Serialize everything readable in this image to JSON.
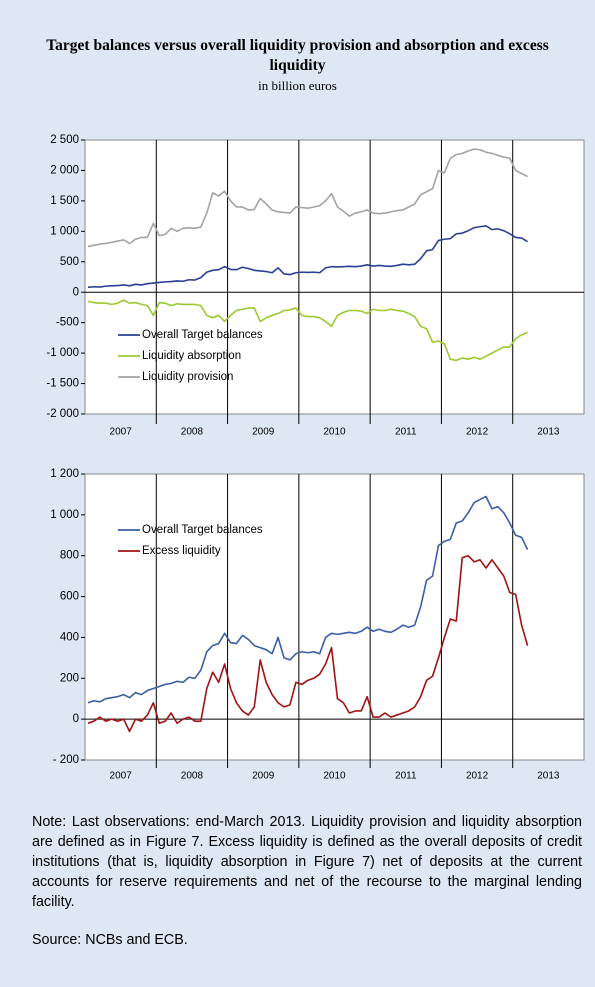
{
  "title": "Target balances versus overall liquidity provision and absorption and excess liquidity",
  "subtitle": "in billion euros",
  "note": "Note: Last observations: end-March 2013. Liquidity provision and liquidity absorption are defined as in Figure 7. Excess liquidity is defined as the overall deposits of credit institutions (that is, liquidity absorption in Figure 7) net of deposits at the current accounts for reserve requirements and net of the recourse to the marginal lending facility.",
  "source": "Source: NCBs and ECB.",
  "chart_data": [
    {
      "type": "line",
      "legend": "upper left",
      "grid": false,
      "x": [
        "2007",
        "2007",
        "2007",
        "2007",
        "2007",
        "2007",
        "2007",
        "2007",
        "2007",
        "2007",
        "2007",
        "2007",
        "2008",
        "2008",
        "2008",
        "2008",
        "2008",
        "2008",
        "2008",
        "2008",
        "2008",
        "2008",
        "2008",
        "2008",
        "2009",
        "2009",
        "2009",
        "2009",
        "2009",
        "2009",
        "2009",
        "2009",
        "2009",
        "2009",
        "2009",
        "2009",
        "2010",
        "2010",
        "2010",
        "2010",
        "2010",
        "2010",
        "2010",
        "2010",
        "2010",
        "2010",
        "2010",
        "2010",
        "2011",
        "2011",
        "2011",
        "2011",
        "2011",
        "2011",
        "2011",
        "2011",
        "2011",
        "2011",
        "2011",
        "2011",
        "2012",
        "2012",
        "2012",
        "2012",
        "2012",
        "2012",
        "2012",
        "2012",
        "2012",
        "2012",
        "2012",
        "2012",
        "2013",
        "2013",
        "2013"
      ],
      "ylim": [
        -2000,
        2500
      ],
      "yticks": [
        {
          "value": -2000,
          "label": "-2 000"
        },
        {
          "value": -1500,
          "label": "-1 500"
        },
        {
          "value": -1000,
          "label": "-1 000"
        },
        -500,
        0,
        500,
        {
          "value": 1000,
          "label": "1 000"
        },
        {
          "value": 1500,
          "label": "1 500"
        },
        {
          "value": 2000,
          "label": "2 000"
        },
        {
          "value": 2500,
          "label": "2 500"
        }
      ],
      "series": [
        {
          "name": "Overall Target balances",
          "color": "#2b3f95",
          "values": [
            80,
            90,
            85,
            100,
            105,
            110,
            120,
            105,
            130,
            120,
            140,
            150,
            160,
            170,
            175,
            185,
            180,
            205,
            200,
            240,
            330,
            360,
            370,
            420,
            375,
            370,
            410,
            390,
            360,
            350,
            340,
            320,
            400,
            300,
            290,
            320,
            330,
            325,
            330,
            320,
            400,
            420,
            415,
            420,
            425,
            420,
            430,
            450,
            430,
            440,
            430,
            425,
            440,
            460,
            450,
            460,
            550,
            680,
            700,
            850,
            870,
            880,
            960,
            970,
            1010,
            1060,
            1075,
            1090,
            1030,
            1040,
            1010,
            960,
            900,
            890,
            830
          ]
        },
        {
          "name": "Liquidity absorption",
          "color": "#9bc92f",
          "values": [
            -150,
            -170,
            -180,
            -180,
            -200,
            -180,
            -130,
            -180,
            -170,
            -200,
            -220,
            -380,
            -170,
            -180,
            -220,
            -190,
            -200,
            -200,
            -200,
            -220,
            -380,
            -420,
            -380,
            -480,
            -380,
            -300,
            -280,
            -260,
            -260,
            -480,
            -420,
            -380,
            -350,
            -300,
            -290,
            -260,
            -380,
            -400,
            -400,
            -420,
            -480,
            -560,
            -380,
            -330,
            -300,
            -300,
            -310,
            -350,
            -280,
            -300,
            -300,
            -280,
            -300,
            -310,
            -350,
            -400,
            -560,
            -600,
            -820,
            -800,
            -850,
            -1100,
            -1120,
            -1080,
            -1100,
            -1070,
            -1100,
            -1050,
            -1000,
            -950,
            -900,
            -900,
            -760,
            -700,
            -660
          ]
        },
        {
          "name": "Liquidity provision",
          "color": "#a3a3a3",
          "values": [
            750,
            770,
            790,
            800,
            820,
            840,
            860,
            800,
            870,
            900,
            900,
            1130,
            930,
            950,
            1050,
            1000,
            1050,
            1060,
            1050,
            1070,
            1300,
            1630,
            1580,
            1660,
            1500,
            1400,
            1400,
            1350,
            1360,
            1540,
            1450,
            1350,
            1320,
            1310,
            1300,
            1400,
            1390,
            1380,
            1400,
            1420,
            1500,
            1620,
            1400,
            1330,
            1250,
            1300,
            1320,
            1350,
            1300,
            1290,
            1300,
            1320,
            1340,
            1350,
            1400,
            1450,
            1600,
            1650,
            1700,
            2000,
            1960,
            2200,
            2260,
            2280,
            2320,
            2350,
            2340,
            2300,
            2280,
            2250,
            2220,
            2200,
            2000,
            1950,
            1900
          ]
        }
      ]
    },
    {
      "type": "line",
      "legend": "upper left",
      "grid": false,
      "x": [
        "2007",
        "2007",
        "2007",
        "2007",
        "2007",
        "2007",
        "2007",
        "2007",
        "2007",
        "2007",
        "2007",
        "2007",
        "2008",
        "2008",
        "2008",
        "2008",
        "2008",
        "2008",
        "2008",
        "2008",
        "2008",
        "2008",
        "2008",
        "2008",
        "2009",
        "2009",
        "2009",
        "2009",
        "2009",
        "2009",
        "2009",
        "2009",
        "2009",
        "2009",
        "2009",
        "2009",
        "2010",
        "2010",
        "2010",
        "2010",
        "2010",
        "2010",
        "2010",
        "2010",
        "2010",
        "2010",
        "2010",
        "2010",
        "2011",
        "2011",
        "2011",
        "2011",
        "2011",
        "2011",
        "2011",
        "2011",
        "2011",
        "2011",
        "2011",
        "2011",
        "2012",
        "2012",
        "2012",
        "2012",
        "2012",
        "2012",
        "2012",
        "2012",
        "2012",
        "2012",
        "2012",
        "2012",
        "2013",
        "2013",
        "2013"
      ],
      "ylim": [
        -200,
        1200
      ],
      "yticks": [
        {
          "value": -200,
          "label": "- 200"
        },
        0,
        200,
        400,
        600,
        800,
        {
          "value": 1000,
          "label": "1 000"
        },
        {
          "value": 1200,
          "label": "1 200"
        }
      ],
      "series": [
        {
          "name": "Overall Target balances",
          "color": "#3a5fa6",
          "values": [
            80,
            90,
            85,
            100,
            105,
            110,
            120,
            105,
            130,
            120,
            140,
            150,
            160,
            170,
            175,
            185,
            180,
            205,
            200,
            240,
            330,
            360,
            370,
            420,
            375,
            370,
            410,
            390,
            360,
            350,
            340,
            320,
            400,
            300,
            290,
            320,
            330,
            325,
            330,
            320,
            400,
            420,
            415,
            420,
            425,
            420,
            430,
            450,
            430,
            440,
            430,
            425,
            440,
            460,
            450,
            460,
            550,
            680,
            700,
            850,
            870,
            880,
            960,
            970,
            1010,
            1060,
            1075,
            1090,
            1030,
            1040,
            1010,
            960,
            900,
            890,
            830
          ]
        },
        {
          "name": "Excess liquidity",
          "color": "#a11212",
          "values": [
            -20,
            -10,
            10,
            -10,
            0,
            -10,
            0,
            -60,
            0,
            -10,
            20,
            80,
            -20,
            -10,
            30,
            -20,
            0,
            10,
            -10,
            -10,
            150,
            230,
            180,
            270,
            150,
            80,
            40,
            20,
            60,
            290,
            180,
            120,
            80,
            60,
            70,
            180,
            170,
            190,
            200,
            220,
            270,
            350,
            100,
            80,
            30,
            40,
            40,
            110,
            10,
            10,
            30,
            10,
            20,
            30,
            40,
            60,
            110,
            190,
            210,
            300,
            400,
            490,
            480,
            790,
            800,
            770,
            780,
            740,
            780,
            740,
            700,
            620,
            610,
            460,
            360
          ]
        }
      ]
    }
  ]
}
